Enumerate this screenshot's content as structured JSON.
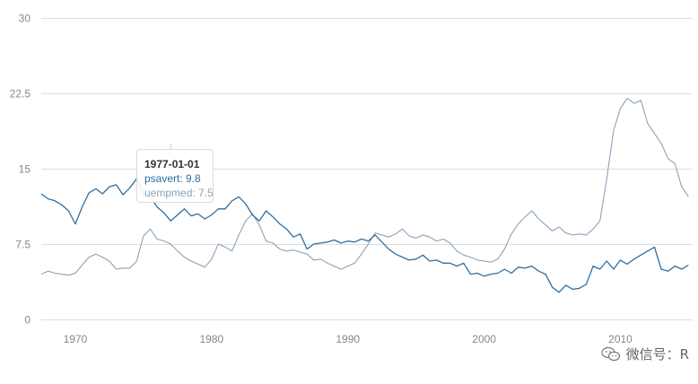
{
  "chart_data": {
    "type": "line",
    "title": "",
    "xlabel": "",
    "ylabel": "",
    "xlim": [
      1967.5,
      2015.3
    ],
    "ylim": [
      0,
      30
    ],
    "x_ticks": [
      "1970",
      "1980",
      "1990",
      "2000",
      "2010"
    ],
    "y_ticks": [
      "0",
      "7.5",
      "15",
      "22.5",
      "30"
    ],
    "grid": true,
    "series": [
      {
        "name": "psavert",
        "color": "#2f6f9f",
        "x": [
          1967.5,
          1968,
          1968.5,
          1969,
          1969.5,
          1970,
          1970.5,
          1971,
          1971.5,
          1972,
          1972.5,
          1973,
          1973.5,
          1974,
          1974.5,
          1975,
          1975.5,
          1976,
          1976.5,
          1977,
          1977.5,
          1978,
          1978.5,
          1979,
          1979.5,
          1980,
          1980.5,
          1981,
          1981.5,
          1982,
          1982.5,
          1983,
          1983.5,
          1984,
          1984.5,
          1985,
          1985.5,
          1986,
          1986.5,
          1987,
          1987.5,
          1988,
          1988.5,
          1989,
          1989.5,
          1990,
          1990.5,
          1991,
          1991.5,
          1992,
          1992.5,
          1993,
          1993.5,
          1994,
          1994.5,
          1995,
          1995.5,
          1996,
          1996.5,
          1997,
          1997.5,
          1998,
          1998.5,
          1999,
          1999.5,
          2000,
          2000.5,
          2001,
          2001.5,
          2002,
          2002.5,
          2003,
          2003.5,
          2004,
          2004.5,
          2005,
          2005.5,
          2006,
          2006.5,
          2007,
          2007.5,
          2008,
          2008.5,
          2009,
          2009.5,
          2010,
          2010.5,
          2011,
          2011.5,
          2012,
          2012.5,
          2013,
          2013.5,
          2014,
          2014.5,
          2015
        ],
        "values": [
          12.5,
          12.0,
          11.8,
          11.4,
          10.8,
          9.5,
          11.2,
          12.6,
          13.0,
          12.5,
          13.2,
          13.4,
          12.4,
          13.1,
          14.0,
          12.5,
          12.2,
          11.2,
          10.6,
          9.8,
          10.4,
          11.0,
          10.3,
          10.5,
          10.0,
          10.4,
          11.0,
          11.0,
          11.8,
          12.2,
          11.5,
          10.4,
          9.8,
          10.8,
          10.2,
          9.5,
          9.0,
          8.2,
          8.5,
          7.0,
          7.5,
          7.6,
          7.7,
          7.9,
          7.6,
          7.8,
          7.7,
          8.0,
          7.8,
          8.4,
          7.7,
          7.0,
          6.5,
          6.2,
          5.9,
          6.0,
          6.4,
          5.8,
          5.9,
          5.6,
          5.6,
          5.3,
          5.6,
          4.5,
          4.6,
          4.3,
          4.5,
          4.6,
          5.0,
          4.6,
          5.2,
          5.1,
          5.3,
          4.8,
          4.5,
          3.2,
          2.7,
          3.4,
          3.0,
          3.1,
          3.5,
          5.3,
          5.0,
          5.8,
          5.0,
          5.9,
          5.5,
          6.0,
          6.4,
          6.8,
          7.2,
          5.0,
          4.8,
          5.3,
          5.0,
          5.4
        ]
      },
      {
        "name": "uempmed",
        "color": "#8aa2b8",
        "x": [
          1967.5,
          1968,
          1968.5,
          1969,
          1969.5,
          1970,
          1970.5,
          1971,
          1971.5,
          1972,
          1972.5,
          1973,
          1973.5,
          1974,
          1974.5,
          1975,
          1975.5,
          1976,
          1976.5,
          1977,
          1977.5,
          1978,
          1978.5,
          1979,
          1979.5,
          1980,
          1980.5,
          1981,
          1981.5,
          1982,
          1982.5,
          1983,
          1983.5,
          1984,
          1984.5,
          1985,
          1985.5,
          1986,
          1986.5,
          1987,
          1987.5,
          1988,
          1988.5,
          1989,
          1989.5,
          1990,
          1990.5,
          1991,
          1991.5,
          1992,
          1992.5,
          1993,
          1993.5,
          1994,
          1994.5,
          1995,
          1995.5,
          1996,
          1996.5,
          1997,
          1997.5,
          1998,
          1998.5,
          1999,
          1999.5,
          2000,
          2000.5,
          2001,
          2001.5,
          2002,
          2002.5,
          2003,
          2003.5,
          2004,
          2004.5,
          2005,
          2005.5,
          2006,
          2006.5,
          2007,
          2007.5,
          2008,
          2008.5,
          2009,
          2009.5,
          2010,
          2010.5,
          2011,
          2011.5,
          2012,
          2012.5,
          2013,
          2013.5,
          2014,
          2014.5,
          2015
        ],
        "values": [
          4.5,
          4.8,
          4.6,
          4.5,
          4.4,
          4.6,
          5.4,
          6.2,
          6.5,
          6.2,
          5.8,
          5.0,
          5.1,
          5.1,
          5.8,
          8.3,
          9.0,
          8.0,
          7.8,
          7.5,
          6.8,
          6.2,
          5.8,
          5.5,
          5.2,
          6.0,
          7.5,
          7.2,
          6.8,
          8.4,
          9.8,
          10.5,
          9.4,
          7.8,
          7.6,
          7.0,
          6.8,
          6.9,
          6.7,
          6.5,
          5.9,
          6.0,
          5.6,
          5.3,
          5.0,
          5.3,
          5.6,
          6.5,
          7.5,
          8.6,
          8.4,
          8.2,
          8.5,
          9.0,
          8.3,
          8.1,
          8.4,
          8.2,
          7.8,
          8.0,
          7.6,
          6.8,
          6.4,
          6.2,
          5.9,
          5.8,
          5.7,
          6.0,
          7.0,
          8.5,
          9.5,
          10.2,
          10.8,
          10.0,
          9.4,
          8.8,
          9.2,
          8.6,
          8.4,
          8.5,
          8.4,
          9.0,
          9.8,
          14.0,
          18.8,
          21.0,
          22.0,
          21.5,
          21.8,
          19.5,
          18.5,
          17.5,
          16.0,
          15.5,
          13.2,
          12.2
        ]
      }
    ],
    "tooltip": {
      "date": "1977-01-01",
      "rows": [
        {
          "label": "psavert: 9.8",
          "color": "#2f6f9f"
        },
        {
          "label": "uempmed: 7.5",
          "color": "#8aa2b8"
        }
      ]
    }
  },
  "watermark": {
    "text": "微信号：R",
    "icon": "wechat-icon"
  }
}
